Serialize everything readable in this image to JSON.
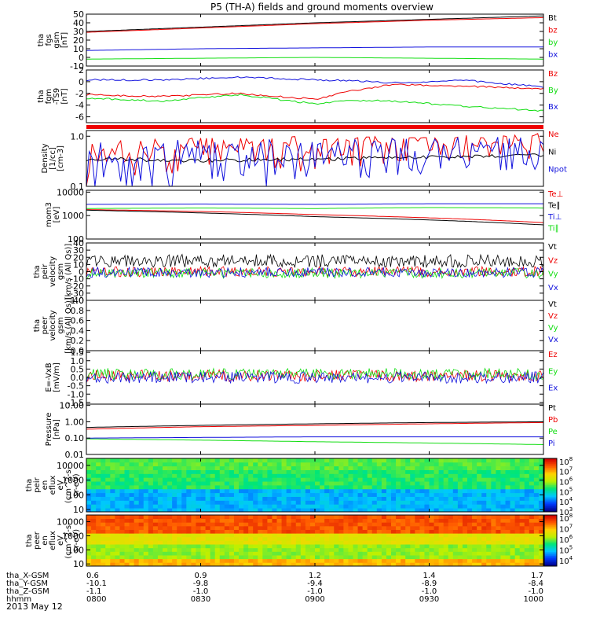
{
  "title": "P5 (TH-A) fields and ground moments overview",
  "date": "2013 May 12",
  "colors": {
    "black": "#000000",
    "red": "#ee0000",
    "green": "#11dd11",
    "blue": "#1111dd"
  },
  "bottom_axis": {
    "row_labels": [
      "tha_X-GSM",
      "tha_Y-GSM",
      "tha_Z-GSM",
      "hhmm"
    ],
    "columns": [
      [
        "0.6",
        "-10.1",
        "-1.1",
        "0800"
      ],
      [
        "0.9",
        "-9.8",
        "-1.0",
        "0830"
      ],
      [
        "1.2",
        "-9.4",
        "-1.0",
        "0900"
      ],
      [
        "1.4",
        "-8.9",
        "-1.0",
        "0930"
      ],
      [
        "1.7",
        "-8.4",
        "-1.0",
        "1000"
      ]
    ]
  },
  "chart_data": [
    {
      "type": "line",
      "name": "fgs",
      "ylabel": [
        "tha",
        "fgs",
        "gsm",
        "[nT]"
      ],
      "ylim": [
        -10,
        50
      ],
      "tick_labels": [
        "50",
        "40",
        "30",
        "20",
        "10",
        "0",
        "-10"
      ],
      "ticks": [
        50,
        40,
        30,
        20,
        10,
        0,
        -10
      ],
      "x": [
        0,
        30,
        60,
        90,
        120
      ],
      "series": [
        {
          "name": "Bt",
          "color": "black",
          "values": [
            30,
            35,
            40,
            44,
            48
          ]
        },
        {
          "name": "bz",
          "color": "red",
          "values": [
            29,
            34,
            39,
            43,
            46
          ]
        },
        {
          "name": "by",
          "color": "green",
          "values": [
            -2,
            -1,
            0,
            -1,
            -2
          ]
        },
        {
          "name": "bx",
          "color": "blue",
          "values": [
            8,
            10,
            11,
            12,
            12
          ]
        }
      ]
    },
    {
      "type": "line",
      "name": "fgm",
      "ylabel": [
        "tha",
        "fgm",
        "-TS9",
        "[nT]"
      ],
      "ylim": [
        -7,
        2
      ],
      "tick_labels": [
        "2",
        "0",
        "-2",
        "-4",
        "-6"
      ],
      "ticks": [
        2,
        0,
        -2,
        -4,
        -6
      ],
      "x": [
        0,
        20,
        40,
        60,
        70,
        80,
        100,
        120
      ],
      "series": [
        {
          "name": "Bz",
          "color": "red",
          "values": [
            -2.2,
            -2.5,
            -2,
            -3,
            -1.5,
            -0.5,
            -0.8,
            -1.2
          ]
        },
        {
          "name": "By",
          "color": "green",
          "values": [
            -2.8,
            -3.3,
            -2.2,
            -3.8,
            -3.2,
            -3.3,
            -4.2,
            -5
          ]
        },
        {
          "name": "Bx",
          "color": "blue",
          "values": [
            0.3,
            0.3,
            0.8,
            0.3,
            0.2,
            -0.2,
            0.2,
            -0.9
          ]
        }
      ]
    },
    {
      "type": "line",
      "name": "density",
      "ylabel": [
        "Density",
        "[1/cc]",
        "[cm-3]"
      ],
      "ylim": [
        0.1,
        1.3
      ],
      "log": true,
      "tick_labels": [
        "1.0",
        "0.1"
      ],
      "ticks": [
        1.0,
        0.1
      ],
      "x": [
        0,
        30,
        60,
        90,
        120
      ],
      "series": [
        {
          "name": "Ne",
          "color": "red",
          "values": [
            0.5,
            0.55,
            0.6,
            0.68,
            0.75
          ]
        },
        {
          "name": "Ni",
          "color": "black",
          "values": [
            0.35,
            0.33,
            0.35,
            0.38,
            0.42
          ]
        },
        {
          "name": "Npot",
          "color": "blue",
          "values": [
            0.42,
            0.45,
            0.5,
            0.55,
            0.6
          ]
        }
      ]
    },
    {
      "type": "line",
      "name": "temperature",
      "ylabel": [
        "mom3",
        "[eV]"
      ],
      "ylim": [
        100,
        12000
      ],
      "log": true,
      "tick_labels": [
        "10000",
        "1000",
        "100"
      ],
      "ticks": [
        10000,
        1000,
        100
      ],
      "x": [
        0,
        30,
        60,
        90,
        120
      ],
      "series": [
        {
          "name": "Te⊥",
          "color": "red",
          "values": [
            1800,
            1500,
            1100,
            800,
            500
          ]
        },
        {
          "name": "Te∥",
          "color": "black",
          "values": [
            1700,
            1300,
            900,
            650,
            400
          ]
        },
        {
          "name": "Ti⊥",
          "color": "blue",
          "values": [
            3000,
            3100,
            3000,
            3200,
            3200
          ]
        },
        {
          "name": "Ti∥",
          "color": "green",
          "values": [
            2000,
            2100,
            2000,
            2200,
            2100
          ]
        }
      ]
    },
    {
      "type": "line",
      "name": "peir velocity",
      "ylabel": [
        "tha",
        "peir",
        "velocity",
        "gsm",
        "[km/s (All Qs)]"
      ],
      "ylim": [
        -40,
        40
      ],
      "tick_labels": [
        "40",
        "30",
        "20",
        "10",
        "0",
        "-10",
        "-20",
        "-30",
        "-40"
      ],
      "ticks": [
        40,
        30,
        20,
        10,
        0,
        -10,
        -20,
        -30,
        -40
      ],
      "x": [
        0,
        120
      ],
      "series": [
        {
          "name": "Vt",
          "color": "black",
          "values": [
            15,
            15
          ]
        },
        {
          "name": "Vz",
          "color": "red",
          "values": [
            0,
            0
          ]
        },
        {
          "name": "Vy",
          "color": "green",
          "values": [
            -2,
            -2
          ]
        },
        {
          "name": "Vx",
          "color": "blue",
          "values": [
            -1,
            -1
          ]
        }
      ]
    },
    {
      "type": "line",
      "name": "peer velocity",
      "ylabel": [
        "tha",
        "peer",
        "velocity",
        "gsm",
        "[km/s (All Qs)]"
      ],
      "ylim": [
        0,
        1
      ],
      "tick_labels": [
        "1.0",
        "0.8",
        "0.6",
        "0.4",
        "0.2",
        "0.0"
      ],
      "ticks": [
        1.0,
        0.8,
        0.6,
        0.4,
        0.2,
        0.0
      ],
      "x": [],
      "series": [
        {
          "name": "Vt",
          "color": "black",
          "values": []
        },
        {
          "name": "Vz",
          "color": "red",
          "values": []
        },
        {
          "name": "Vy",
          "color": "green",
          "values": []
        },
        {
          "name": "Vx",
          "color": "blue",
          "values": []
        }
      ]
    },
    {
      "type": "line",
      "name": "efield",
      "ylabel": [
        "E=-VxB",
        "[mV/m]"
      ],
      "ylim": [
        -1.6,
        1.6
      ],
      "tick_labels": [
        "1.5",
        "1.0",
        "0.5",
        "0.0",
        "-0.5",
        "-1.0",
        "-1.5"
      ],
      "ticks": [
        1.5,
        1.0,
        0.5,
        0.0,
        -0.5,
        -1.0,
        -1.5
      ],
      "x": [
        0,
        120
      ],
      "series": [
        {
          "name": "Ez",
          "color": "red",
          "values": [
            0.1,
            0.1
          ]
        },
        {
          "name": "Ey",
          "color": "green",
          "values": [
            0.2,
            0.2
          ]
        },
        {
          "name": "Ex",
          "color": "blue",
          "values": [
            0,
            0
          ]
        }
      ]
    },
    {
      "type": "line",
      "name": "pressure",
      "ylabel": [
        "Pressure",
        "[nPa]"
      ],
      "ylim": [
        0.01,
        12
      ],
      "log": true,
      "tick_labels": [
        "10.00",
        "1.00",
        "0.10",
        "0.01"
      ],
      "ticks": [
        10,
        1,
        0.1,
        0.01
      ],
      "x": [
        0,
        30,
        60,
        90,
        120
      ],
      "series": [
        {
          "name": "Pt",
          "color": "black",
          "values": [
            0.45,
            0.6,
            0.75,
            0.9,
            1.0
          ]
        },
        {
          "name": "Pb",
          "color": "red",
          "values": [
            0.35,
            0.5,
            0.6,
            0.75,
            0.9
          ]
        },
        {
          "name": "Pe",
          "color": "green",
          "values": [
            0.09,
            0.075,
            0.06,
            0.05,
            0.04
          ]
        },
        {
          "name": "Pi",
          "color": "blue",
          "values": [
            0.1,
            0.11,
            0.12,
            0.12,
            0.12
          ]
        }
      ]
    },
    {
      "type": "heatmap",
      "name": "peir en eflux",
      "ylabel": [
        "tha",
        "peir",
        "en",
        "eflux",
        "eV",
        "(cm^2-s-",
        "sr-eV)"
      ],
      "ylim": [
        7,
        30000
      ],
      "log": true,
      "tick_labels": [
        "10000",
        "1000",
        "100",
        "10"
      ],
      "ticks": [
        10000,
        1000,
        100,
        10
      ],
      "colorbar": {
        "tick_labels": [
          "10^8",
          "10^7",
          "10^6",
          "10^5",
          "10^4",
          "10^3"
        ],
        "range": [
          3,
          8.3
        ]
      }
    },
    {
      "type": "heatmap",
      "name": "peer en eflux",
      "ylabel": [
        "tha",
        "peer",
        "en",
        "eflux",
        "eV",
        "(cm^2-s-",
        "sr-eV)"
      ],
      "ylim": [
        7,
        30000
      ],
      "log": true,
      "tick_labels": [
        "10000",
        "1000",
        "100",
        "10"
      ],
      "ticks": [
        10000,
        1000,
        100,
        10
      ],
      "colorbar": {
        "tick_labels": [
          "10^8",
          "10^7",
          "10^6",
          "10^5",
          "10^4"
        ],
        "range": [
          3.5,
          8.3
        ]
      }
    }
  ]
}
